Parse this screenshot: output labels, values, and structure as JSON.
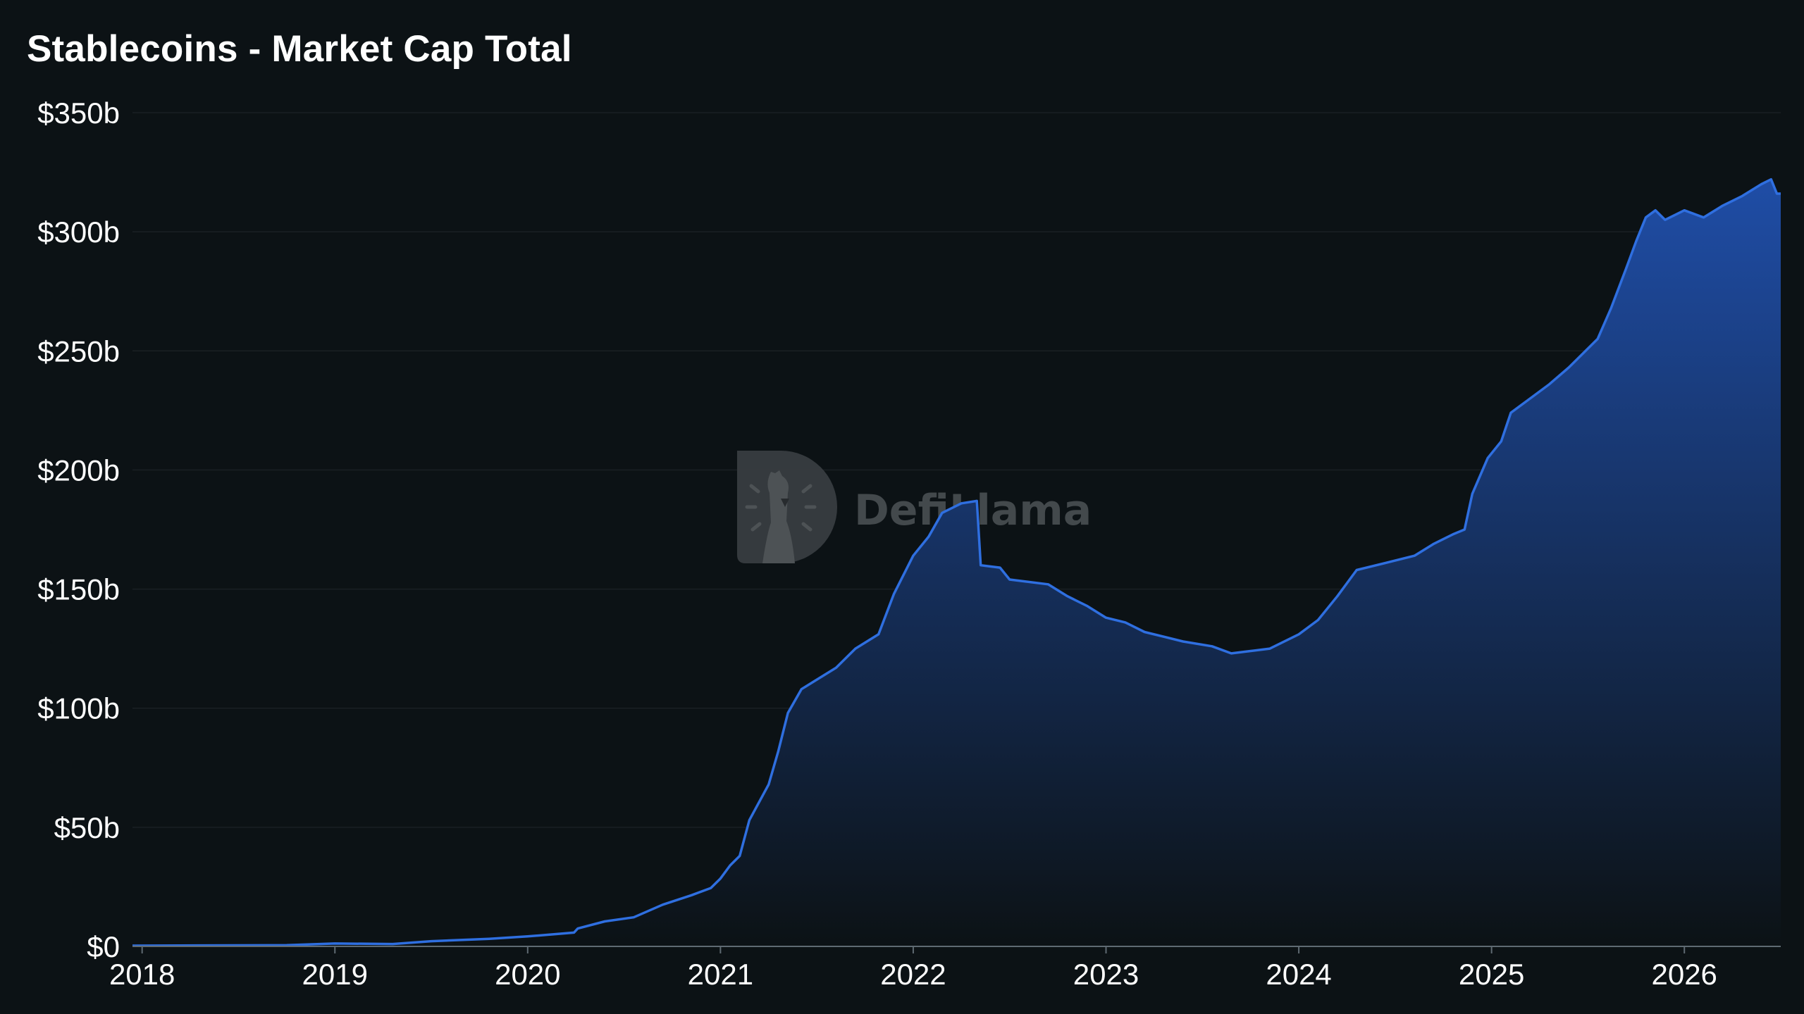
{
  "title": "Stablecoins - Market Cap Total",
  "watermark": {
    "text": "DefiLlama",
    "icon": "llama-logo-icon"
  },
  "colors": {
    "background": "#0c1215",
    "line": "#2f6fe0",
    "area_top": "#1f4da6",
    "area_bottom": "#0c1215",
    "axis_text": "#ffffff"
  },
  "chart_data": {
    "type": "area",
    "title": "Stablecoins - Market Cap Total",
    "xlabel": "",
    "ylabel": "",
    "ylim": [
      0,
      350
    ],
    "xlim": [
      2017.95,
      2026.5
    ],
    "grid": true,
    "legend": "none",
    "y_ticks": [
      {
        "value": 0,
        "label": "$0"
      },
      {
        "value": 50,
        "label": "$50b"
      },
      {
        "value": 100,
        "label": "$100b"
      },
      {
        "value": 150,
        "label": "$150b"
      },
      {
        "value": 200,
        "label": "$200b"
      },
      {
        "value": 250,
        "label": "$250b"
      },
      {
        "value": 300,
        "label": "$300b"
      },
      {
        "value": 350,
        "label": "$350b"
      }
    ],
    "x_ticks": [
      {
        "value": 2018,
        "label": "2018"
      },
      {
        "value": 2019,
        "label": "2019"
      },
      {
        "value": 2020,
        "label": "2020"
      },
      {
        "value": 2021,
        "label": "2021"
      },
      {
        "value": 2022,
        "label": "2022"
      },
      {
        "value": 2023,
        "label": "2023"
      },
      {
        "value": 2024,
        "label": "2024"
      },
      {
        "value": 2025,
        "label": "2025"
      },
      {
        "value": 2026,
        "label": "2026"
      }
    ],
    "series": [
      {
        "points": [
          [
            2017.95,
            0.3
          ],
          [
            2018.3,
            0.4
          ],
          [
            2018.75,
            0.5
          ],
          [
            2019.0,
            1.2
          ],
          [
            2019.3,
            1.0
          ],
          [
            2019.5,
            2.2
          ],
          [
            2019.8,
            3.2
          ],
          [
            2020.0,
            4.2
          ],
          [
            2020.24,
            5.8
          ],
          [
            2020.26,
            7.5
          ],
          [
            2020.4,
            10.5
          ],
          [
            2020.55,
            12.2
          ],
          [
            2020.7,
            17.5
          ],
          [
            2020.85,
            21.5
          ],
          [
            2020.95,
            24.5
          ],
          [
            2021.0,
            28.5
          ],
          [
            2021.05,
            34.0
          ],
          [
            2021.1,
            38.0
          ],
          [
            2021.15,
            53.0
          ],
          [
            2021.25,
            68.0
          ],
          [
            2021.3,
            82.0
          ],
          [
            2021.35,
            98.0
          ],
          [
            2021.42,
            108.0
          ],
          [
            2021.5,
            112.0
          ],
          [
            2021.6,
            117.0
          ],
          [
            2021.7,
            125.0
          ],
          [
            2021.82,
            131.0
          ],
          [
            2021.9,
            148.0
          ],
          [
            2022.0,
            164.0
          ],
          [
            2022.08,
            172.0
          ],
          [
            2022.15,
            182.0
          ],
          [
            2022.25,
            186.0
          ],
          [
            2022.33,
            187.0
          ],
          [
            2022.35,
            160.0
          ],
          [
            2022.45,
            159.0
          ],
          [
            2022.5,
            154.0
          ],
          [
            2022.7,
            152.0
          ],
          [
            2022.8,
            147.0
          ],
          [
            2022.9,
            143.0
          ],
          [
            2023.0,
            138.0
          ],
          [
            2023.1,
            136.0
          ],
          [
            2023.2,
            132.0
          ],
          [
            2023.4,
            128.0
          ],
          [
            2023.55,
            126.0
          ],
          [
            2023.65,
            123.0
          ],
          [
            2023.75,
            124.0
          ],
          [
            2023.85,
            125.0
          ],
          [
            2023.95,
            129.0
          ],
          [
            2024.0,
            131.0
          ],
          [
            2024.1,
            137.0
          ],
          [
            2024.2,
            147.0
          ],
          [
            2024.3,
            158.0
          ],
          [
            2024.45,
            161.0
          ],
          [
            2024.6,
            164.0
          ],
          [
            2024.7,
            169.0
          ],
          [
            2024.8,
            173.0
          ],
          [
            2024.86,
            175.0
          ],
          [
            2024.9,
            190.0
          ],
          [
            2024.98,
            205.0
          ],
          [
            2025.05,
            212.0
          ],
          [
            2025.1,
            224.0
          ],
          [
            2025.2,
            230.0
          ],
          [
            2025.3,
            236.0
          ],
          [
            2025.4,
            243.0
          ],
          [
            2025.55,
            255.0
          ],
          [
            2025.62,
            268.0
          ],
          [
            2025.7,
            285.0
          ],
          [
            2025.75,
            296.0
          ],
          [
            2025.8,
            306.0
          ],
          [
            2025.85,
            309.0
          ],
          [
            2025.9,
            305.0
          ],
          [
            2026.0,
            309.0
          ],
          [
            2026.1,
            306.0
          ],
          [
            2026.2,
            311.0
          ],
          [
            2026.3,
            315.0
          ],
          [
            2026.4,
            320.0
          ],
          [
            2026.45,
            322.0
          ],
          [
            2026.48,
            316.0
          ],
          [
            2026.5,
            316.0
          ]
        ]
      }
    ]
  }
}
